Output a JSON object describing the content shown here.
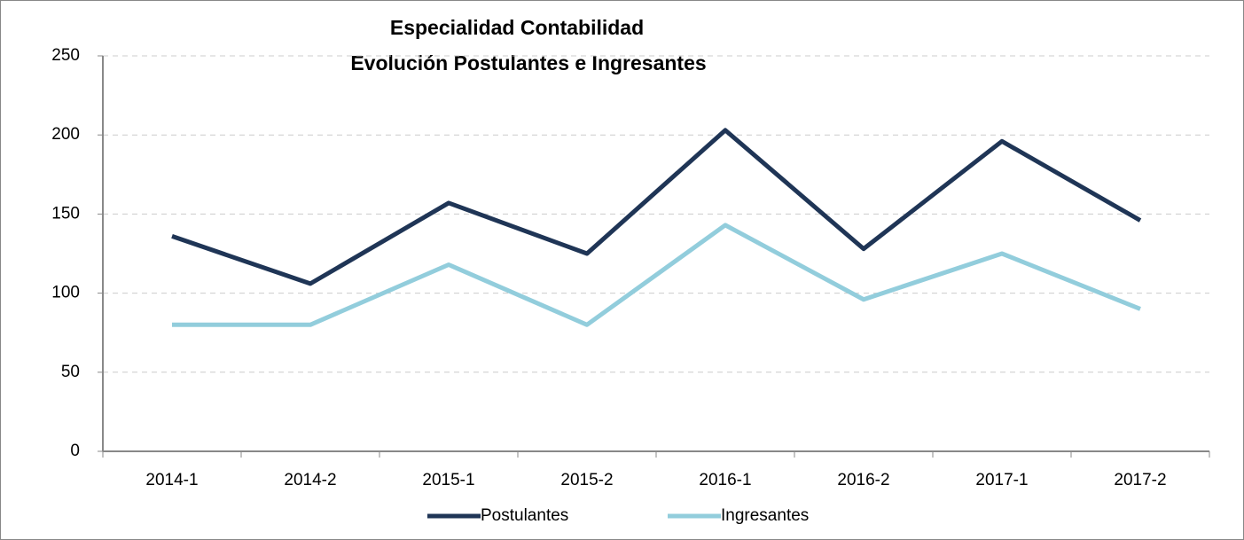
{
  "chart_data": {
    "type": "line",
    "title": "Especialidad Contabilidad",
    "subtitle": "Evolución Postulantes e Ingresantes",
    "categories": [
      "2014-1",
      "2014-2",
      "2015-1",
      "2015-2",
      "2016-1",
      "2016-2",
      "2017-1",
      "2017-2"
    ],
    "series": [
      {
        "name": "Postulantes",
        "color": "#1f3556",
        "values": [
          136,
          106,
          157,
          125,
          203,
          128,
          196,
          146
        ]
      },
      {
        "name": "Ingresantes",
        "color": "#92cddc",
        "values": [
          80,
          80,
          118,
          80,
          143,
          96,
          125,
          90
        ]
      }
    ],
    "ylim": [
      0,
      250
    ],
    "yticks": [
      0,
      50,
      100,
      150,
      200,
      250
    ],
    "grid": true,
    "legend": "bottom"
  }
}
